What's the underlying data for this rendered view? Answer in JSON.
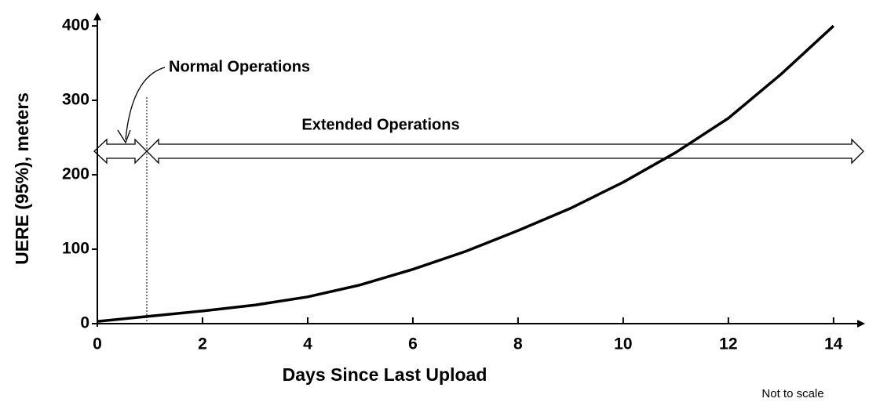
{
  "chart_data": {
    "type": "line",
    "xlabel": "Days Since Last Upload",
    "ylabel": "UERE (95%), meters",
    "annotations": [
      "Normal Operations",
      "Extended Operations",
      "Not to scale"
    ],
    "x": [
      0,
      1,
      2,
      3,
      4,
      5,
      6,
      7,
      8,
      9,
      10,
      11,
      12,
      13,
      14
    ],
    "series": [
      {
        "name": "UERE",
        "color": "#000000",
        "values": [
          3,
          10,
          17,
          25,
          36,
          52,
          73,
          97,
          125,
          155,
          190,
          230,
          276,
          335,
          400
        ]
      }
    ],
    "xlim": [
      0,
      14.6
    ],
    "ylim": [
      0,
      418
    ],
    "xticks": [
      0,
      2,
      4,
      6,
      8,
      10,
      12,
      14
    ],
    "yticks": [
      0,
      100,
      200,
      300,
      400
    ],
    "grid": false
  }
}
